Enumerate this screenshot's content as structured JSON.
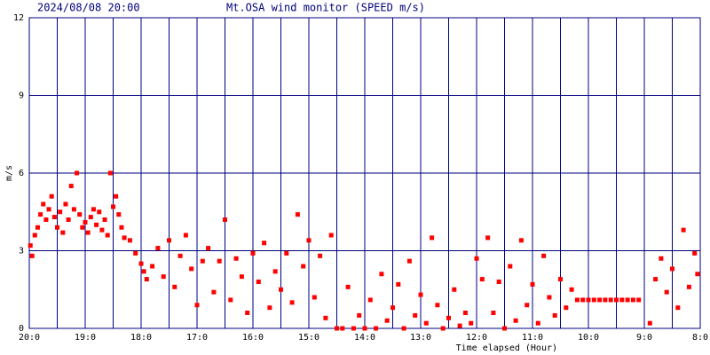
{
  "chart_data": {
    "type": "scatter",
    "date": "2024/08/08 20:00",
    "title": "Mt.OSA wind monitor (SPEED m/s)",
    "y_label": "m/s",
    "x_label": "Time elapsed (Hour)",
    "xlim": [
      0,
      12
    ],
    "ylim": [
      0,
      12
    ],
    "yticks": [
      0,
      3,
      6,
      9,
      12
    ],
    "xticks": [
      {
        "value": 0,
        "label": "20:0"
      },
      {
        "value": 1,
        "label": "19:0"
      },
      {
        "value": 2,
        "label": "18:0"
      },
      {
        "value": 3,
        "label": "17:0"
      },
      {
        "value": 4,
        "label": "16:0"
      },
      {
        "value": 5,
        "label": "15:0"
      },
      {
        "value": 6,
        "label": "14:0"
      },
      {
        "value": 7,
        "label": "13:0"
      },
      {
        "value": 8,
        "label": "12:0"
      },
      {
        "value": 9,
        "label": "11:0"
      },
      {
        "value": 10,
        "label": "10:0"
      },
      {
        "value": 11,
        "label": "9:0"
      },
      {
        "value": 12,
        "label": "8:0"
      }
    ],
    "grid": true,
    "grid_color": "#000080",
    "color": "#ff0000",
    "x": [
      0.02,
      0.05,
      0.1,
      0.15,
      0.2,
      0.25,
      0.3,
      0.35,
      0.4,
      0.45,
      0.5,
      0.55,
      0.6,
      0.65,
      0.7,
      0.75,
      0.8,
      0.85,
      0.9,
      0.95,
      1.0,
      1.05,
      1.1,
      1.15,
      1.2,
      1.25,
      1.3,
      1.35,
      1.4,
      1.45,
      1.5,
      1.55,
      1.6,
      1.65,
      1.7,
      1.8,
      1.9,
      2.0,
      2.05,
      2.1,
      2.2,
      2.3,
      2.4,
      2.5,
      2.6,
      2.7,
      2.8,
      2.9,
      3.0,
      3.1,
      3.2,
      3.3,
      3.4,
      3.5,
      3.6,
      3.7,
      3.8,
      3.9,
      4.0,
      4.1,
      4.2,
      4.3,
      4.4,
      4.5,
      4.6,
      4.7,
      4.8,
      4.9,
      5.0,
      5.1,
      5.2,
      5.3,
      5.4,
      5.5,
      5.6,
      5.7,
      5.8,
      5.9,
      6.0,
      6.1,
      6.2,
      6.3,
      6.4,
      6.5,
      6.6,
      6.7,
      6.8,
      6.9,
      7.0,
      7.1,
      7.2,
      7.3,
      7.4,
      7.5,
      7.6,
      7.7,
      7.8,
      7.9,
      8.0,
      8.1,
      8.2,
      8.3,
      8.4,
      8.5,
      8.6,
      8.7,
      8.8,
      8.9,
      9.0,
      9.1,
      9.2,
      9.3,
      9.4,
      9.5,
      9.6,
      9.7,
      9.8,
      9.9,
      10.0,
      10.1,
      10.2,
      10.3,
      10.4,
      10.5,
      10.6,
      10.7,
      10.8,
      10.9,
      11.1,
      11.2,
      11.3,
      11.4,
      11.5,
      11.6,
      11.7,
      11.8,
      11.9,
      11.95
    ],
    "values": [
      3.2,
      2.8,
      3.6,
      3.9,
      4.4,
      4.8,
      4.2,
      4.6,
      5.1,
      4.3,
      3.9,
      4.5,
      3.7,
      4.8,
      4.2,
      5.5,
      4.6,
      6.0,
      4.4,
      3.9,
      4.1,
      3.7,
      4.3,
      4.6,
      4.0,
      4.5,
      3.8,
      4.2,
      3.6,
      6.0,
      4.7,
      5.1,
      4.4,
      3.9,
      3.5,
      3.4,
      2.9,
      2.5,
      2.2,
      1.9,
      2.4,
      3.1,
      2.0,
      3.4,
      1.6,
      2.8,
      3.6,
      2.3,
      0.9,
      2.6,
      3.1,
      1.4,
      2.6,
      4.2,
      1.1,
      2.7,
      2.0,
      0.6,
      2.9,
      1.8,
      3.3,
      0.8,
      2.2,
      1.5,
      2.9,
      1.0,
      4.4,
      2.4,
      3.4,
      1.2,
      2.8,
      0.4,
      3.6,
      0,
      0,
      1.6,
      0,
      0.5,
      0,
      1.1,
      0,
      2.1,
      0.3,
      0.8,
      1.7,
      0,
      2.6,
      0.5,
      1.3,
      0.2,
      3.5,
      0.9,
      0,
      0.4,
      1.5,
      0.1,
      0.6,
      0.2,
      2.7,
      1.9,
      3.5,
      0.6,
      1.8,
      0,
      2.4,
      0.3,
      3.4,
      0.9,
      1.7,
      0.2,
      2.8,
      1.2,
      0.5,
      1.9,
      0.8,
      1.5,
      1.1,
      1.1,
      1.1,
      1.1,
      1.1,
      1.1,
      1.1,
      1.1,
      1.1,
      1.1,
      1.1,
      1.1,
      0.2,
      1.9,
      2.7,
      1.4,
      2.3,
      0.8,
      3.8,
      1.6,
      2.9,
      2.1
    ]
  }
}
